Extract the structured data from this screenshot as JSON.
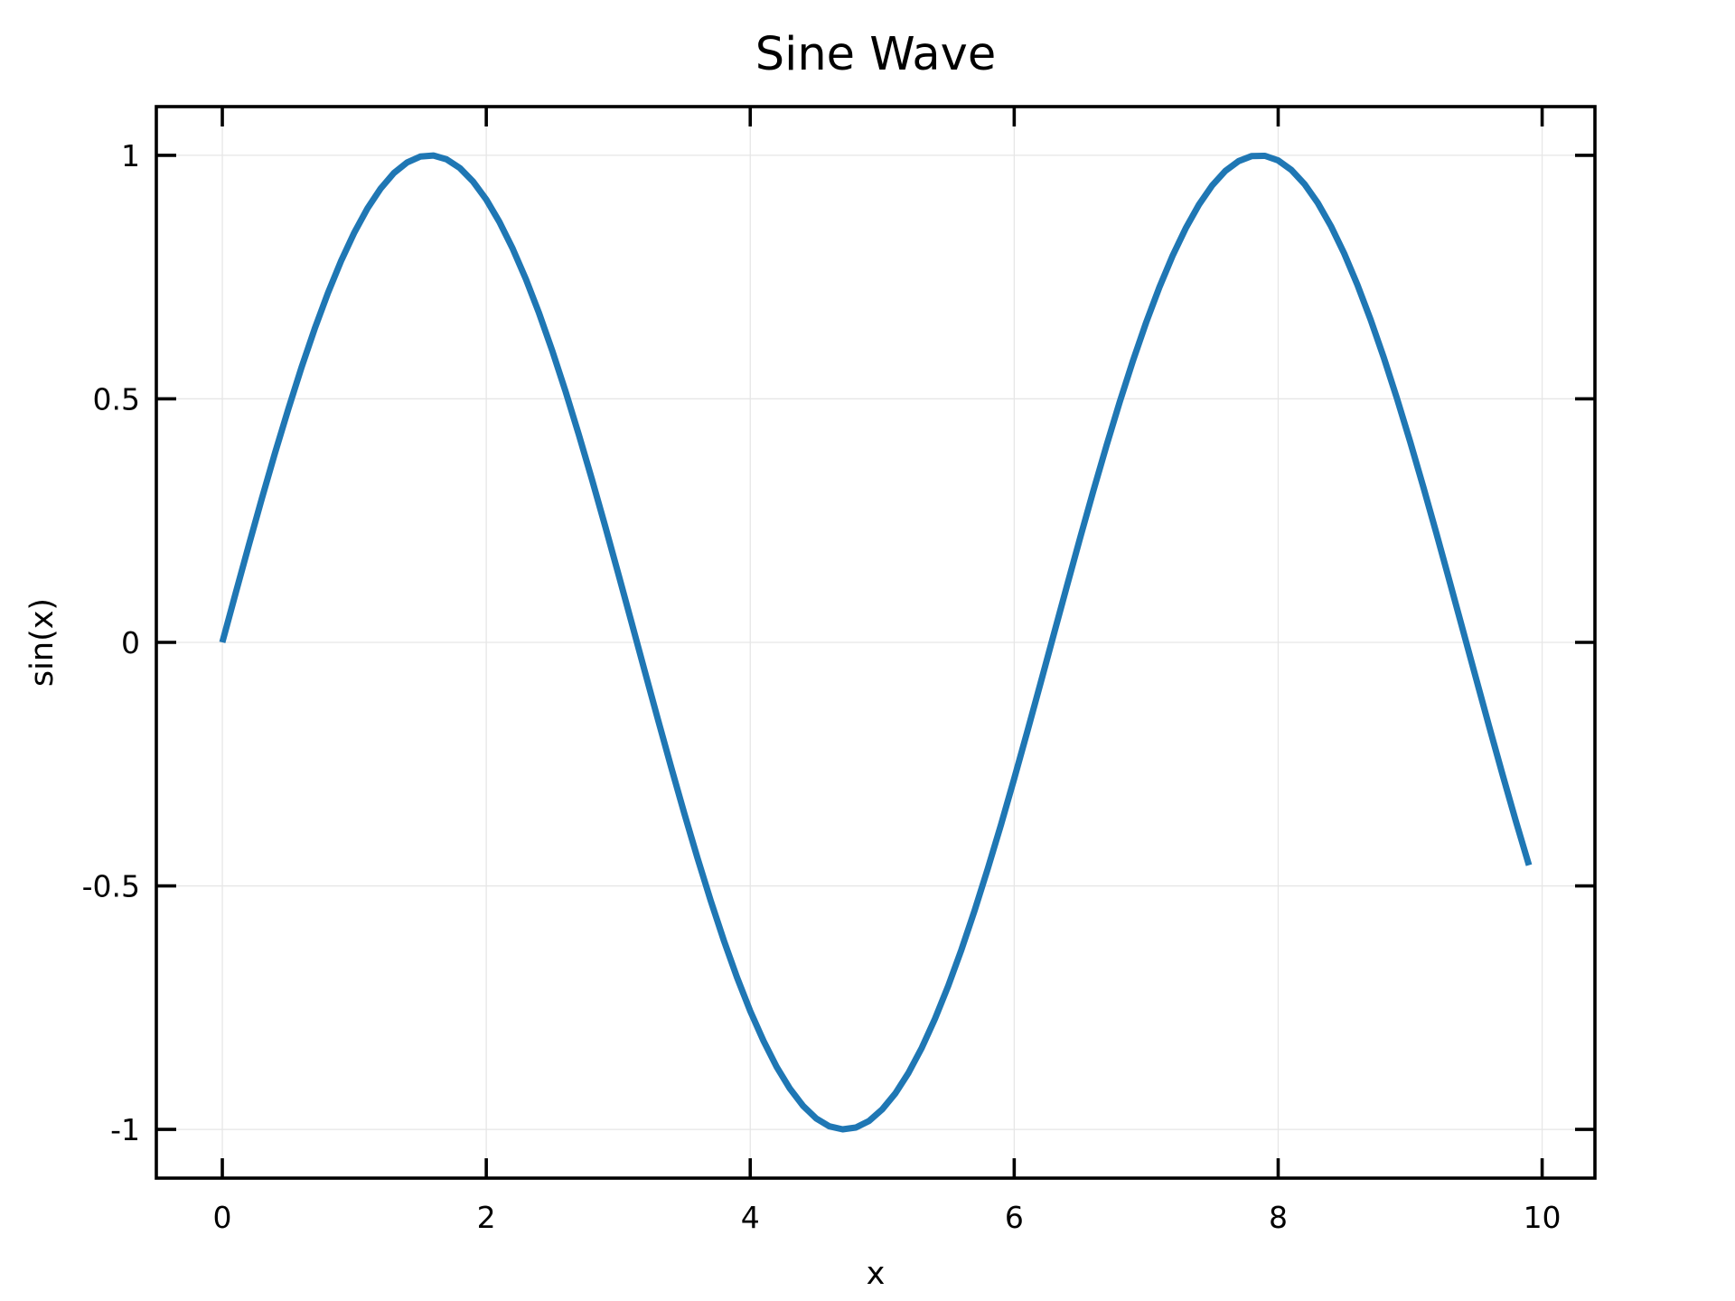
{
  "chart_data": {
    "type": "line",
    "title": "Sine Wave",
    "xlabel": "x",
    "ylabel": "sin(x)",
    "xlim": [
      -0.5,
      10.4
    ],
    "ylim": [
      -1.1,
      1.1
    ],
    "xticks": [
      0,
      2,
      4,
      6,
      8,
      10
    ],
    "xtick_labels": [
      "0",
      "2",
      "4",
      "6",
      "8",
      "10"
    ],
    "yticks": [
      1,
      0.5,
      0,
      -0.5,
      -1
    ],
    "ytick_labels": [
      "1",
      "0.5",
      "0",
      "-0.5",
      "-1"
    ],
    "grid": true,
    "colors": {
      "series": "#1f77b4",
      "grid": "#e6e6e6",
      "frame": "#000000"
    },
    "series": [
      {
        "function": "sin(x)",
        "x": [
          0,
          0.1,
          0.2,
          0.3,
          0.4,
          0.5,
          0.6,
          0.7,
          0.8,
          0.9,
          1.0,
          1.1,
          1.2,
          1.3,
          1.4,
          1.5,
          1.6,
          1.7,
          1.8,
          1.9,
          2.0,
          2.1,
          2.2,
          2.3,
          2.4,
          2.5,
          2.6,
          2.7,
          2.8,
          2.9,
          3.0,
          3.1,
          3.2,
          3.3,
          3.4,
          3.5,
          3.6,
          3.7,
          3.8,
          3.9,
          4.0,
          4.1,
          4.2,
          4.3,
          4.4,
          4.5,
          4.6,
          4.7,
          4.8,
          4.9,
          5.0,
          5.1,
          5.2,
          5.3,
          5.4,
          5.5,
          5.6,
          5.7,
          5.8,
          5.9,
          6.0,
          6.1,
          6.2,
          6.3,
          6.4,
          6.5,
          6.6,
          6.7,
          6.8,
          6.9,
          7.0,
          7.1,
          7.2,
          7.3,
          7.4,
          7.5,
          7.6,
          7.7,
          7.8,
          7.9,
          8.0,
          8.1,
          8.2,
          8.3,
          8.4,
          8.5,
          8.6,
          8.7,
          8.8,
          8.9,
          9.0,
          9.1,
          9.2,
          9.3,
          9.4,
          9.5,
          9.6,
          9.7,
          9.8,
          9.9
        ],
        "y": [
          0.0,
          0.0998,
          0.1987,
          0.2955,
          0.3894,
          0.4794,
          0.5646,
          0.6442,
          0.7174,
          0.7833,
          0.8415,
          0.8912,
          0.932,
          0.9636,
          0.9854,
          0.9975,
          0.9996,
          0.9917,
          0.9738,
          0.9463,
          0.9093,
          0.8632,
          0.8085,
          0.7457,
          0.6755,
          0.5985,
          0.5155,
          0.4274,
          0.335,
          0.2392,
          0.1411,
          0.0416,
          -0.0584,
          -0.1577,
          -0.2555,
          -0.3508,
          -0.4425,
          -0.5298,
          -0.6119,
          -0.6878,
          -0.7568,
          -0.8183,
          -0.8716,
          -0.9162,
          -0.9516,
          -0.9775,
          -0.9937,
          -0.9999,
          -0.9962,
          -0.9825,
          -0.9589,
          -0.9258,
          -0.8835,
          -0.8323,
          -0.7728,
          -0.7055,
          -0.6313,
          -0.5507,
          -0.4646,
          -0.3739,
          -0.2794,
          -0.1822,
          -0.0831,
          0.0168,
          0.1165,
          0.2151,
          0.3115,
          0.4048,
          0.4941,
          0.5784,
          0.657,
          0.729,
          0.7937,
          0.8504,
          0.8987,
          0.938,
          0.9679,
          0.9882,
          0.9985,
          0.9989,
          0.9894,
          0.9699,
          0.9407,
          0.9022,
          0.8546,
          0.7985,
          0.7344,
          0.663,
          0.5849,
          0.501,
          0.4121,
          0.319,
          0.2229,
          0.1245,
          0.025,
          -0.0752,
          -0.1743,
          -0.2718,
          -0.3665,
          -0.4575
        ]
      }
    ]
  }
}
